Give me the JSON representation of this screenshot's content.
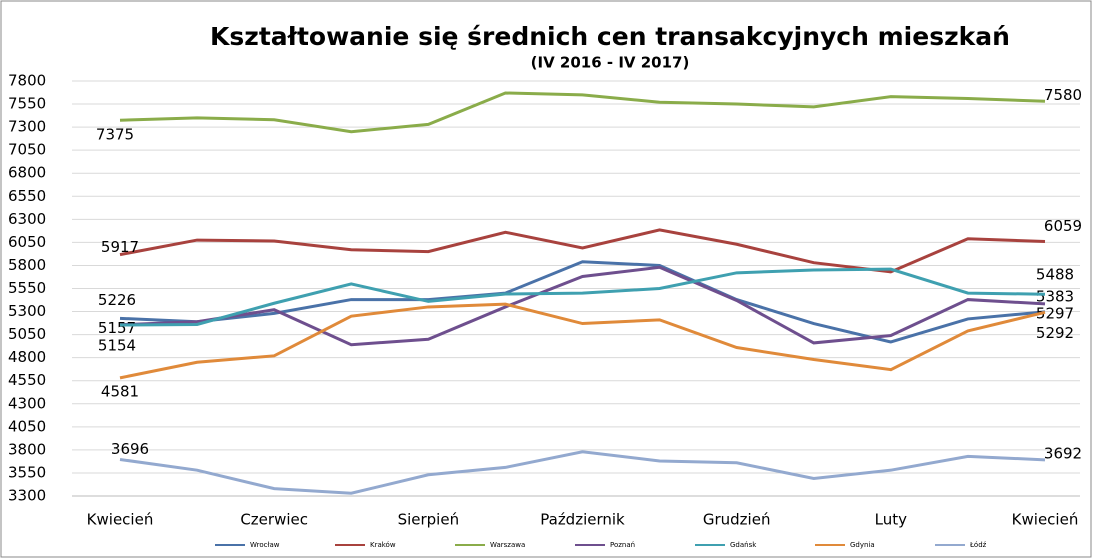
{
  "chart_data": {
    "type": "line",
    "title": "Kształtowanie się średnich cen transakcyjnych mieszkań",
    "subtitle": "(IV 2016 - IV 2017)",
    "categories": [
      "Kwiecień",
      null,
      "Czerwiec",
      null,
      "Sierpień",
      null,
      "Październik",
      null,
      "Grudzień",
      null,
      "Luty",
      null,
      "Kwiecień"
    ],
    "ylim": [
      3300,
      7800
    ],
    "yticks": [
      3300,
      3550,
      3800,
      4050,
      4300,
      4550,
      4800,
      5050,
      5300,
      5550,
      5800,
      6050,
      6300,
      6550,
      6800,
      7050,
      7300,
      7550,
      7800
    ],
    "grid": true,
    "legend": "bottom",
    "series": [
      {
        "name": "Wrocław",
        "color": "#4a72a8",
        "values": [
          5226,
          5190,
          5280,
          5430,
          5430,
          5500,
          5840,
          5800,
          5430,
          5170,
          4970,
          5220,
          5297
        ]
      },
      {
        "name": "Kraków",
        "color": "#a8423e",
        "values": [
          5917,
          6075,
          6065,
          5970,
          5950,
          6160,
          5990,
          6185,
          6030,
          5830,
          5730,
          6090,
          6059
        ]
      },
      {
        "name": "Warszawa",
        "color": "#8aac4a",
        "values": [
          7375,
          7400,
          7380,
          7250,
          7330,
          7670,
          7650,
          7570,
          7550,
          7520,
          7630,
          7610,
          7580
        ]
      },
      {
        "name": "Poznań",
        "color": "#6e4f8e",
        "values": [
          5157,
          5190,
          5320,
          4940,
          5000,
          5350,
          5680,
          5780,
          5420,
          4960,
          5040,
          5430,
          5383
        ]
      },
      {
        "name": "Gdańsk",
        "color": "#3fa0b0",
        "values": [
          5154,
          5160,
          5390,
          5600,
          5410,
          5490,
          5500,
          5550,
          5720,
          5750,
          5760,
          5500,
          5488
        ]
      },
      {
        "name": "Gdynia",
        "color": "#e08a3a",
        "values": [
          4581,
          4750,
          4820,
          5250,
          5350,
          5380,
          5170,
          5210,
          4910,
          4780,
          4670,
          5090,
          5292
        ]
      },
      {
        "name": "Łódź",
        "color": "#93a9cf",
        "values": [
          3696,
          3580,
          3380,
          3330,
          3530,
          3610,
          3780,
          3680,
          3660,
          3490,
          3580,
          3730,
          3692
        ]
      }
    ]
  }
}
